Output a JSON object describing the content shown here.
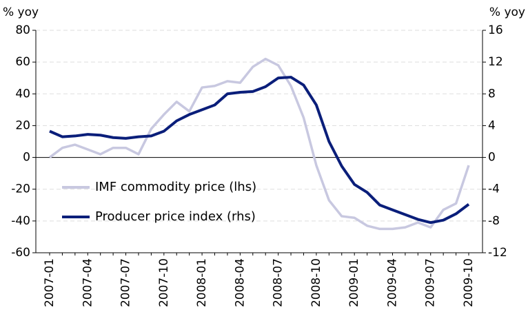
{
  "chart_data": {
    "type": "line",
    "y_label": "% yoy",
    "y2_label": "% yoy",
    "categories": [
      "2007-01",
      null,
      null,
      "2007-04",
      null,
      null,
      "2007-07",
      null,
      null,
      "2007-10",
      null,
      null,
      "2008-01",
      null,
      null,
      "2008-04",
      null,
      null,
      "2008-07",
      null,
      null,
      "2008-10",
      null,
      null,
      "2009-01",
      null,
      null,
      "2009-04",
      null,
      null,
      "2009-07",
      null,
      null,
      "2009-10"
    ],
    "series": [
      {
        "name": "IMF commodity price (lhs)",
        "color": "#c8c8e0",
        "axis": "y",
        "values": [
          0,
          6,
          8,
          5,
          2,
          6,
          6,
          2,
          18,
          27,
          35,
          29,
          44,
          45,
          48,
          47,
          57,
          62,
          58,
          45,
          25,
          -5,
          -27,
          -37,
          -38,
          -43,
          -45,
          -45,
          -44,
          -41,
          -44,
          -33,
          -29,
          -5
        ]
      },
      {
        "name": "Producer price index (rhs)",
        "color": "#0a1e7a",
        "axis": "y2",
        "values": [
          3.3,
          2.6,
          2.7,
          2.9,
          2.8,
          2.5,
          2.4,
          2.6,
          2.7,
          3.3,
          4.6,
          5.4,
          6.0,
          6.6,
          8.0,
          8.2,
          8.3,
          8.9,
          10.0,
          10.1,
          9.1,
          6.6,
          2.0,
          -1.1,
          -3.4,
          -4.4,
          -6.0,
          -6.6,
          -7.2,
          -7.8,
          -8.2,
          -7.9,
          -7.1,
          -5.9
        ]
      }
    ],
    "ylim": [
      -60,
      80
    ],
    "yticks": [
      -60,
      -40,
      -20,
      0,
      20,
      40,
      60,
      80
    ],
    "y2lim": [
      -12,
      16
    ],
    "y2ticks": [
      -12,
      -8,
      -4,
      0,
      4,
      8,
      12,
      16
    ],
    "grid": true,
    "legend": "lower-left"
  }
}
